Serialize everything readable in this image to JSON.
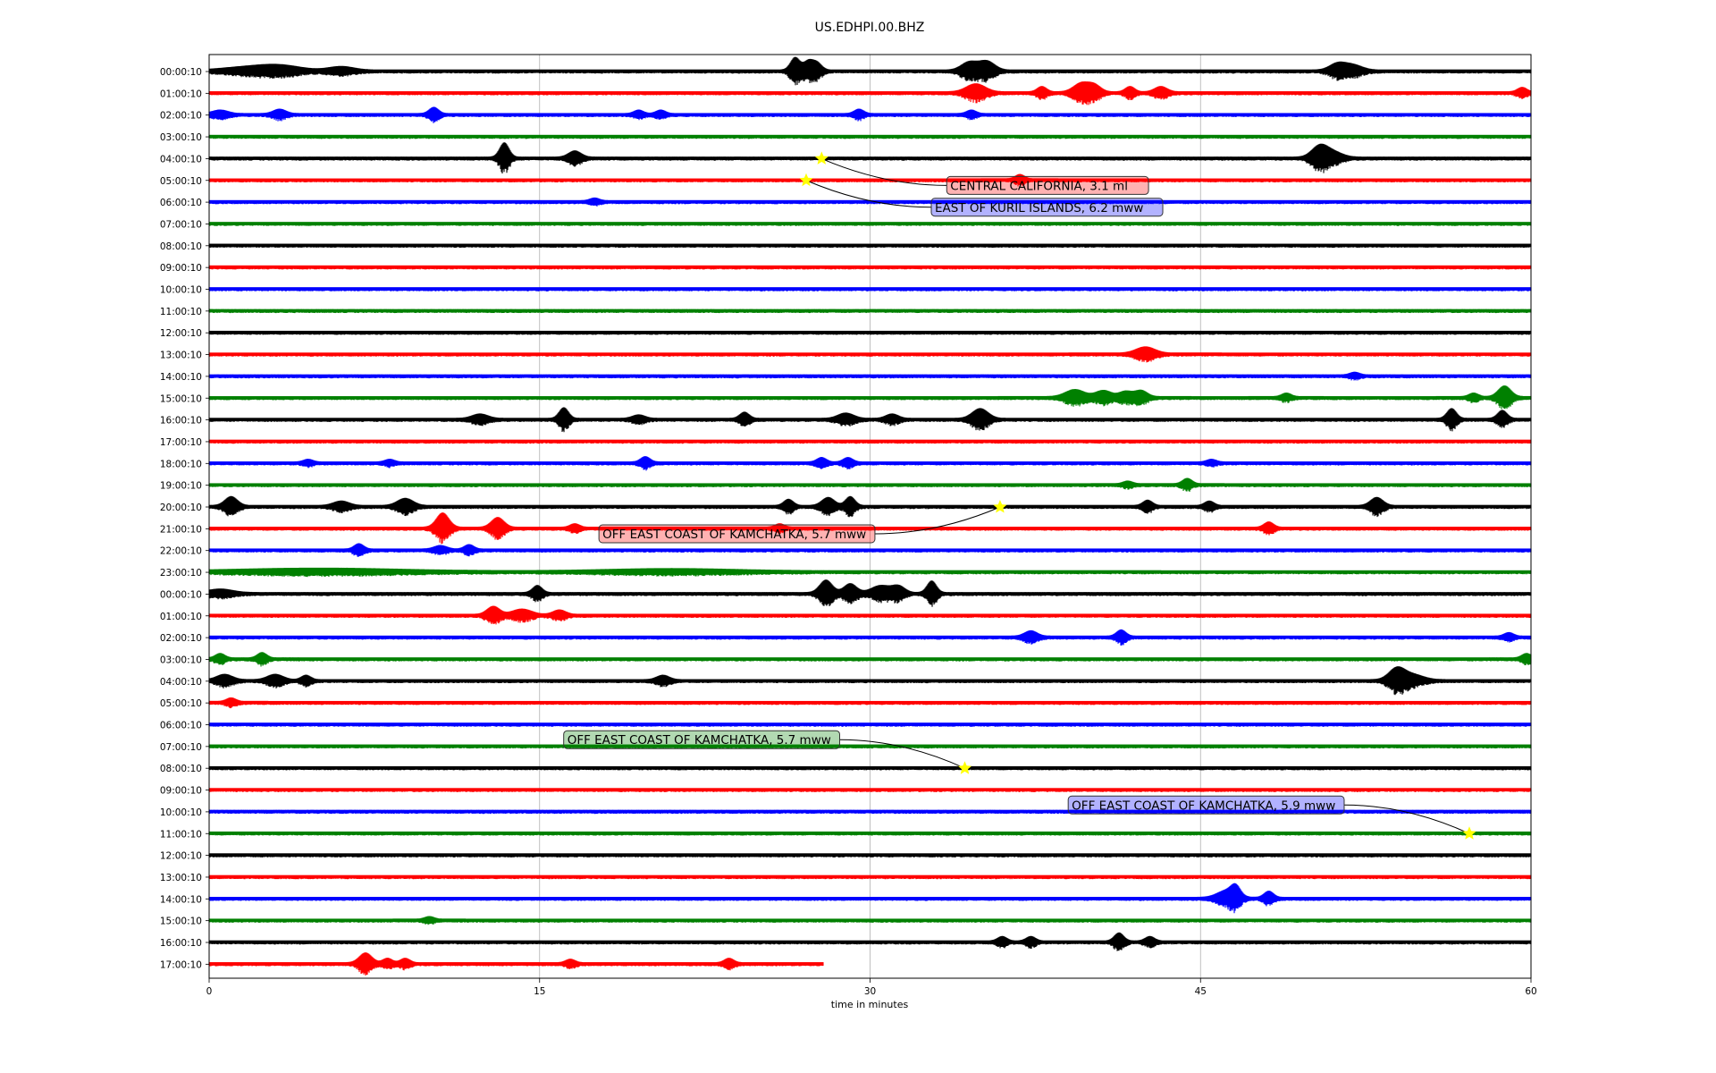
{
  "chart_data": {
    "type": "line",
    "title": "US.EDHPI.00.BHZ",
    "xlabel": "time in minutes",
    "ylabel": "",
    "xlim": [
      0,
      60
    ],
    "xticks": [
      "0",
      "15",
      "30",
      "45",
      "60"
    ],
    "grid": "vertical lines at 15, 30, 45",
    "trace_colors": [
      "#000000",
      "#ff0000",
      "#0000ff",
      "#008000"
    ],
    "rows": [
      {
        "label": "00:00:10",
        "end_min": 60,
        "bursts": [
          {
            "t": 1.5,
            "a": 3,
            "w": 1.4
          },
          {
            "t": 2.8,
            "a": 3,
            "w": 1.2
          },
          {
            "t": 3.5,
            "a": 3,
            "w": 1.2
          },
          {
            "t": 6,
            "a": 4,
            "w": 0.8
          },
          {
            "t": 26.6,
            "a": 14,
            "w": 0.3
          },
          {
            "t": 27.2,
            "a": 10,
            "w": 0.3
          },
          {
            "t": 27.6,
            "a": 8,
            "w": 0.3
          },
          {
            "t": 34.5,
            "a": 9,
            "w": 0.5
          },
          {
            "t": 35.3,
            "a": 10,
            "w": 0.5
          },
          {
            "t": 51.2,
            "a": 7,
            "w": 0.5
          },
          {
            "t": 51.9,
            "a": 6,
            "w": 0.6
          }
        ]
      },
      {
        "label": "01:00:10",
        "end_min": 60,
        "bursts": [
          {
            "t": 34.8,
            "a": 9,
            "w": 0.6
          },
          {
            "t": 37.8,
            "a": 6,
            "w": 0.3
          },
          {
            "t": 39.6,
            "a": 10,
            "w": 0.5
          },
          {
            "t": 40.2,
            "a": 7,
            "w": 0.4
          },
          {
            "t": 41.8,
            "a": 6,
            "w": 0.3
          },
          {
            "t": 43.2,
            "a": 6,
            "w": 0.4
          },
          {
            "t": 59.6,
            "a": 5,
            "w": 0.3
          }
        ]
      },
      {
        "label": "02:00:10",
        "end_min": 60,
        "bursts": [
          {
            "t": 0.5,
            "a": 4,
            "w": 0.5
          },
          {
            "t": 3.2,
            "a": 5,
            "w": 0.4
          },
          {
            "t": 10.2,
            "a": 7,
            "w": 0.3
          },
          {
            "t": 19.5,
            "a": 4,
            "w": 0.3
          },
          {
            "t": 20.5,
            "a": 4,
            "w": 0.3
          },
          {
            "t": 29.5,
            "a": 5,
            "w": 0.3
          },
          {
            "t": 34.6,
            "a": 4,
            "w": 0.3
          }
        ]
      },
      {
        "label": "03:00:10",
        "end_min": 60,
        "bursts": []
      },
      {
        "label": "04:00:10",
        "end_min": 60,
        "bursts": [
          {
            "t": 13.4,
            "a": 16,
            "w": 0.3
          },
          {
            "t": 16.6,
            "a": 7,
            "w": 0.4
          },
          {
            "t": 50.4,
            "a": 12,
            "w": 0.5
          },
          {
            "t": 51,
            "a": 6,
            "w": 0.6
          }
        ]
      },
      {
        "label": "05:00:10",
        "end_min": 60,
        "bursts": [
          {
            "t": 36.8,
            "a": 5,
            "w": 0.3
          }
        ]
      },
      {
        "label": "06:00:10",
        "end_min": 60,
        "bursts": [
          {
            "t": 17.5,
            "a": 3,
            "w": 0.3
          }
        ]
      },
      {
        "label": "07:00:10",
        "end_min": 60,
        "bursts": []
      },
      {
        "label": "08:00:10",
        "end_min": 60,
        "bursts": []
      },
      {
        "label": "09:00:10",
        "end_min": 60,
        "bursts": []
      },
      {
        "label": "10:00:10",
        "end_min": 60,
        "bursts": []
      },
      {
        "label": "11:00:10",
        "end_min": 60,
        "bursts": []
      },
      {
        "label": "12:00:10",
        "end_min": 60,
        "bursts": []
      },
      {
        "label": "13:00:10",
        "end_min": 60,
        "bursts": [
          {
            "t": 42.5,
            "a": 7,
            "w": 0.6
          }
        ]
      },
      {
        "label": "14:00:10",
        "end_min": 60,
        "bursts": [
          {
            "t": 52,
            "a": 3,
            "w": 0.3
          }
        ]
      },
      {
        "label": "15:00:10",
        "end_min": 60,
        "bursts": [
          {
            "t": 39.3,
            "a": 8,
            "w": 0.6
          },
          {
            "t": 40.6,
            "a": 7,
            "w": 0.5
          },
          {
            "t": 41.6,
            "a": 6,
            "w": 0.4
          },
          {
            "t": 42.3,
            "a": 7,
            "w": 0.4
          },
          {
            "t": 48.9,
            "a": 4,
            "w": 0.3
          },
          {
            "t": 57.4,
            "a": 4,
            "w": 0.3
          },
          {
            "t": 58.8,
            "a": 12,
            "w": 0.4
          }
        ]
      },
      {
        "label": "16:00:10",
        "end_min": 60,
        "bursts": [
          {
            "t": 12.3,
            "a": 5,
            "w": 0.5
          },
          {
            "t": 16.1,
            "a": 12,
            "w": 0.3
          },
          {
            "t": 19.5,
            "a": 4,
            "w": 0.4
          },
          {
            "t": 24.3,
            "a": 7,
            "w": 0.3
          },
          {
            "t": 28.9,
            "a": 6,
            "w": 0.5
          },
          {
            "t": 31,
            "a": 5,
            "w": 0.4
          },
          {
            "t": 35,
            "a": 11,
            "w": 0.5
          },
          {
            "t": 56.4,
            "a": 11,
            "w": 0.3
          },
          {
            "t": 58.7,
            "a": 9,
            "w": 0.3
          }
        ]
      },
      {
        "label": "17:00:10",
        "end_min": 60,
        "bursts": []
      },
      {
        "label": "18:00:10",
        "end_min": 60,
        "bursts": [
          {
            "t": 4.5,
            "a": 3,
            "w": 0.3
          },
          {
            "t": 8.2,
            "a": 3,
            "w": 0.3
          },
          {
            "t": 19.8,
            "a": 6,
            "w": 0.3
          },
          {
            "t": 27.8,
            "a": 5,
            "w": 0.3
          },
          {
            "t": 29,
            "a": 5,
            "w": 0.3
          },
          {
            "t": 45.5,
            "a": 3,
            "w": 0.3
          }
        ]
      },
      {
        "label": "19:00:10",
        "end_min": 60,
        "bursts": [
          {
            "t": 44.4,
            "a": 6,
            "w": 0.3
          },
          {
            "t": 41.7,
            "a": 3,
            "w": 0.3
          }
        ]
      },
      {
        "label": "20:00:10",
        "end_min": 60,
        "bursts": [
          {
            "t": 1,
            "a": 10,
            "w": 0.4
          },
          {
            "t": 6,
            "a": 5,
            "w": 0.5
          },
          {
            "t": 8.9,
            "a": 8,
            "w": 0.5
          },
          {
            "t": 26.3,
            "a": 7,
            "w": 0.3
          },
          {
            "t": 28.1,
            "a": 9,
            "w": 0.4
          },
          {
            "t": 29.1,
            "a": 10,
            "w": 0.3
          },
          {
            "t": 42.6,
            "a": 6,
            "w": 0.3
          },
          {
            "t": 45.4,
            "a": 5,
            "w": 0.3
          },
          {
            "t": 53,
            "a": 9,
            "w": 0.4
          }
        ]
      },
      {
        "label": "21:00:10",
        "end_min": 60,
        "bursts": [
          {
            "t": 10.6,
            "a": 16,
            "w": 0.4
          },
          {
            "t": 13.1,
            "a": 11,
            "w": 0.4
          },
          {
            "t": 16.6,
            "a": 4,
            "w": 0.3
          },
          {
            "t": 25.9,
            "a": 4,
            "w": 0.3
          },
          {
            "t": 48.1,
            "a": 6,
            "w": 0.3
          }
        ]
      },
      {
        "label": "22:00:10",
        "end_min": 60,
        "bursts": [
          {
            "t": 6.8,
            "a": 6,
            "w": 0.3
          },
          {
            "t": 10.5,
            "a": 4,
            "w": 0.4
          },
          {
            "t": 11.8,
            "a": 5,
            "w": 0.3
          }
        ]
      },
      {
        "label": "23:00:10",
        "end_min": 60,
        "bursts": [
          {
            "t": 5,
            "a": 3,
            "w": 5
          },
          {
            "t": 21,
            "a": 2.5,
            "w": 4
          }
        ]
      },
      {
        "label": "00:00:10",
        "end_min": 60,
        "bursts": [
          {
            "t": 0.5,
            "a": 4,
            "w": 0.8
          },
          {
            "t": 14.9,
            "a": 8,
            "w": 0.3
          },
          {
            "t": 28,
            "a": 14,
            "w": 0.4
          },
          {
            "t": 29.1,
            "a": 10,
            "w": 0.4
          },
          {
            "t": 30.5,
            "a": 8,
            "w": 0.6
          },
          {
            "t": 31.3,
            "a": 7,
            "w": 0.4
          },
          {
            "t": 32.8,
            "a": 13,
            "w": 0.3
          }
        ]
      },
      {
        "label": "01:00:10",
        "end_min": 60,
        "bursts": [
          {
            "t": 12.9,
            "a": 9,
            "w": 0.4
          },
          {
            "t": 14.2,
            "a": 6,
            "w": 0.6
          },
          {
            "t": 15.9,
            "a": 5,
            "w": 0.4
          }
        ]
      },
      {
        "label": "02:00:10",
        "end_min": 60,
        "bursts": [
          {
            "t": 37.3,
            "a": 6,
            "w": 0.4
          },
          {
            "t": 41.4,
            "a": 7,
            "w": 0.3
          },
          {
            "t": 59,
            "a": 4,
            "w": 0.3
          }
        ]
      },
      {
        "label": "03:00:10",
        "end_min": 60,
        "bursts": [
          {
            "t": 0.5,
            "a": 5,
            "w": 0.3
          },
          {
            "t": 2.4,
            "a": 6,
            "w": 0.3
          },
          {
            "t": 59.8,
            "a": 5,
            "w": 0.3
          }
        ]
      },
      {
        "label": "04:00:10",
        "end_min": 60,
        "bursts": [
          {
            "t": 0.7,
            "a": 6,
            "w": 0.5
          },
          {
            "t": 3,
            "a": 6,
            "w": 0.5
          },
          {
            "t": 4.4,
            "a": 5,
            "w": 0.3
          },
          {
            "t": 20.6,
            "a": 5,
            "w": 0.4
          },
          {
            "t": 53.9,
            "a": 12,
            "w": 0.5
          },
          {
            "t": 54.6,
            "a": 6,
            "w": 0.7
          }
        ]
      },
      {
        "label": "05:00:10",
        "end_min": 60,
        "bursts": [
          {
            "t": 1,
            "a": 4,
            "w": 0.3
          }
        ]
      },
      {
        "label": "06:00:10",
        "end_min": 60,
        "bursts": []
      },
      {
        "label": "07:00:10",
        "end_min": 60,
        "bursts": []
      },
      {
        "label": "08:00:10",
        "end_min": 60,
        "bursts": []
      },
      {
        "label": "09:00:10",
        "end_min": 60,
        "bursts": []
      },
      {
        "label": "10:00:10",
        "end_min": 60,
        "bursts": []
      },
      {
        "label": "11:00:10",
        "end_min": 60,
        "bursts": []
      },
      {
        "label": "12:00:10",
        "end_min": 60,
        "bursts": []
      },
      {
        "label": "13:00:10",
        "end_min": 60,
        "bursts": []
      },
      {
        "label": "14:00:10",
        "end_min": 60,
        "bursts": [
          {
            "t": 46.2,
            "a": 8,
            "w": 0.6
          },
          {
            "t": 46.6,
            "a": 10,
            "w": 0.3
          },
          {
            "t": 48.1,
            "a": 7,
            "w": 0.3
          }
        ]
      },
      {
        "label": "15:00:10",
        "end_min": 60,
        "bursts": [
          {
            "t": 10,
            "a": 3,
            "w": 0.3
          }
        ]
      },
      {
        "label": "16:00:10",
        "end_min": 60,
        "bursts": [
          {
            "t": 36,
            "a": 5,
            "w": 0.3
          },
          {
            "t": 37.3,
            "a": 5,
            "w": 0.3
          },
          {
            "t": 41.3,
            "a": 9,
            "w": 0.3
          },
          {
            "t": 42.7,
            "a": 5,
            "w": 0.3
          }
        ]
      },
      {
        "label": "17:00:10",
        "end_min": 27.9,
        "bursts": [
          {
            "t": 7.1,
            "a": 11,
            "w": 0.4
          },
          {
            "t": 8.1,
            "a": 5,
            "w": 0.3
          },
          {
            "t": 8.9,
            "a": 5,
            "w": 0.3
          },
          {
            "t": 16.4,
            "a": 4,
            "w": 0.3
          },
          {
            "t": 23.6,
            "a": 5,
            "w": 0.3
          }
        ]
      }
    ],
    "events": [
      {
        "row": 4,
        "t": 27.8,
        "label": "CENTRAL CALIFORNIA, 3.1 ml",
        "box_color": "#ff0000"
      },
      {
        "row": 5,
        "t": 27.1,
        "label": "EAST OF KURIL ISLANDS, 6.2 mww",
        "box_color": "#0000ff"
      },
      {
        "row": 20,
        "t": 35.9,
        "label": "OFF EAST COAST OF KAMCHATKA, 5.7 mww",
        "box_color": "#ff0000"
      },
      {
        "row": 32,
        "t": 34.3,
        "label": "OFF EAST COAST OF KAMCHATKA, 5.7 mww",
        "box_color": "#008000"
      },
      {
        "row": 35,
        "t": 57.2,
        "label": "OFF EAST COAST OF KAMCHATKA, 5.9 mww",
        "box_color": "#0000ff"
      }
    ],
    "event_marker_color": "#ffff00"
  }
}
